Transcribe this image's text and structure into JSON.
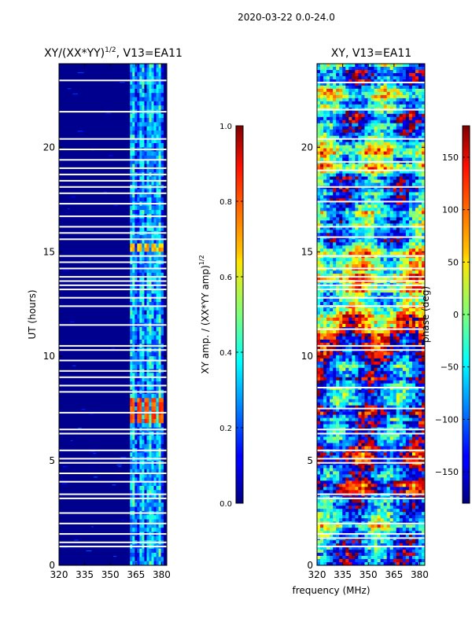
{
  "figure": {
    "suptitle": "2020-03-22 0.0-24.0",
    "xlabel": "frequency (MHz)"
  },
  "chart_data": [
    {
      "type": "heatmap",
      "title": "XY/(XX*YY)",
      "title_superscript": "1/2",
      "title_suffix": ", V13=EA11",
      "xlabel": "",
      "ylabel": "UT (hours)",
      "xlim": [
        320,
        383
      ],
      "ylim": [
        0,
        24
      ],
      "xticks": [
        320,
        335,
        350,
        365,
        380
      ],
      "yticks": [
        0,
        5,
        10,
        15,
        20
      ],
      "colorbar": {
        "label": "XY amp. / (XX*YY amp)",
        "label_superscript": "1/2",
        "range": [
          0.0,
          1.0
        ],
        "ticks": [
          0.0,
          0.2,
          0.4,
          0.6,
          0.8,
          1.0
        ],
        "tick_labels": [
          "0.0",
          "0.2",
          "0.4",
          "0.6",
          "0.8",
          "1.0"
        ],
        "colormap": "jet"
      },
      "active_band_mhz": [
        361.5,
        381
      ],
      "hot_spots": [
        {
          "ut_start": 6.8,
          "ut_end": 8.1,
          "value": 0.8
        },
        {
          "ut_start": 15.0,
          "ut_end": 15.3,
          "value": 0.7
        }
      ],
      "flagged_ut_hours": [
        0.9,
        1.1,
        1.5,
        2.0,
        2.5,
        3.2,
        3.4,
        4.0,
        4.4,
        4.9,
        5.1,
        5.5,
        6.3,
        6.5,
        7.3,
        8.3,
        8.6,
        9.0,
        9.3,
        9.8,
        10.3,
        10.5,
        11.5,
        12.4,
        12.8,
        13.2,
        13.4,
        13.6,
        13.8,
        14.2,
        14.5,
        14.8,
        15.6,
        15.9,
        16.2,
        16.7,
        17.3,
        17.8,
        18.1,
        18.4,
        18.7,
        19.0,
        19.4,
        19.9,
        20.4,
        21.7,
        23.2
      ]
    },
    {
      "type": "heatmap",
      "title": "XY, V13=EA11",
      "xlabel": "",
      "ylabel": "",
      "xlim": [
        320,
        383
      ],
      "ylim": [
        0,
        24
      ],
      "xticks": [
        320,
        335,
        350,
        365,
        380
      ],
      "yticks": [
        0,
        5,
        10,
        15,
        20
      ],
      "colorbar": {
        "label": "phase (deg)",
        "range": [
          -180,
          180
        ],
        "ticks": [
          -150,
          -100,
          -50,
          0,
          50,
          100,
          150
        ],
        "tick_labels": [
          "−150",
          "−100",
          "−50",
          "0",
          "50",
          "100",
          "150"
        ],
        "colormap": "jet"
      },
      "flagged_ut_hours": [
        0.9,
        1.3,
        1.5,
        2.0,
        3.2,
        3.4,
        4.9,
        5.1,
        5.5,
        6.3,
        6.5,
        7.5,
        8.5,
        10.3,
        10.5,
        11.3,
        12.4,
        12.8,
        13.2,
        13.4,
        13.6,
        13.8,
        14.2,
        14.8,
        15.7,
        16.2,
        17.4,
        18.1,
        18.9,
        19.3,
        20.4,
        21.8,
        23.1
      ]
    }
  ]
}
